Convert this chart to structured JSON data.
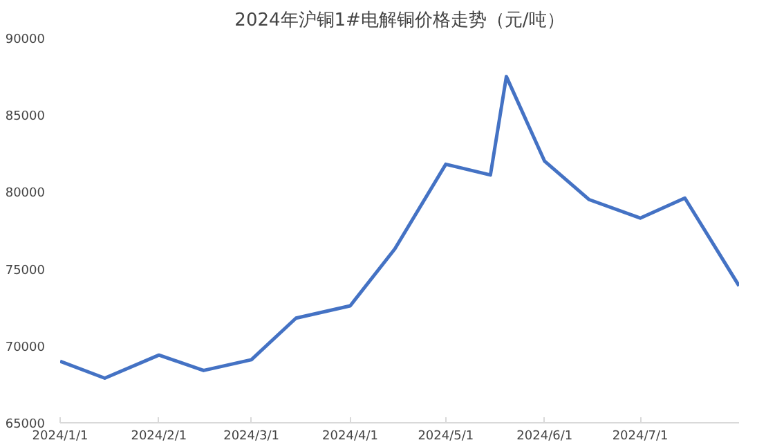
{
  "chart_data": {
    "type": "line",
    "title": "2024年沪铜1#电解铜价格走势（元/吨）",
    "x": [
      "2024-01-01",
      "2024-01-15",
      "2024-02-01",
      "2024-02-15",
      "2024-03-01",
      "2024-03-15",
      "2024-04-01",
      "2024-04-15",
      "2024-05-01",
      "2024-05-15",
      "2024-05-20",
      "2024-06-01",
      "2024-06-15",
      "2024-07-01",
      "2024-07-15",
      "2024-08-01"
    ],
    "series": [
      {
        "color": "#4472c4",
        "values": [
          69000,
          67900,
          69400,
          68400,
          69100,
          71800,
          72600,
          76300,
          81800,
          81100,
          87500,
          82000,
          79500,
          78300,
          79600,
          73900
        ]
      }
    ],
    "xlim": [
      "2024-01-01",
      "2024-08-01"
    ],
    "xticks": [
      {
        "value": "2024-01-01",
        "label": "2024/1/1"
      },
      {
        "value": "2024-02-01",
        "label": "2024/2/1"
      },
      {
        "value": "2024-03-01",
        "label": "2024/3/1"
      },
      {
        "value": "2024-04-01",
        "label": "2024/4/1"
      },
      {
        "value": "2024-05-01",
        "label": "2024/5/1"
      },
      {
        "value": "2024-06-01",
        "label": "2024/6/1"
      },
      {
        "value": "2024-07-01",
        "label": "2024/7/1"
      }
    ],
    "ylim": [
      65000,
      90000
    ],
    "yticks": [
      65000,
      70000,
      75000,
      80000,
      85000,
      90000
    ],
    "grid": false,
    "marker": "none",
    "line_style": "solid"
  }
}
